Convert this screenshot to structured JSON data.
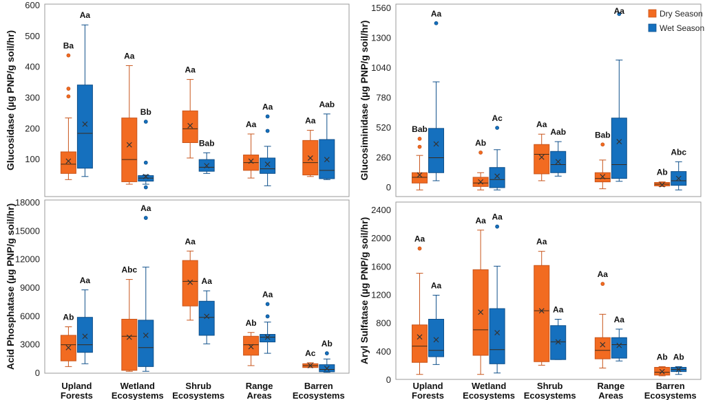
{
  "categories": [
    "Upland Forests",
    "Wetland Ecosystems",
    "Shrub Ecosystems",
    "Range Areas",
    "Barren Ecosystems"
  ],
  "category_lines": [
    [
      "Upland",
      "Forests"
    ],
    [
      "Wetland",
      "Ecosystems"
    ],
    [
      "Shrub",
      "Ecosystems"
    ],
    [
      "Range",
      "Areas"
    ],
    [
      "Barren",
      "Ecosystems"
    ]
  ],
  "colors": {
    "dry": "#F26B21",
    "wet": "#1570BE",
    "dry_edge": "#C8541A",
    "wet_edge": "#0E4F8A",
    "frame": "#9a9a9a",
    "whisker": "#777777"
  },
  "legend": [
    {
      "name": "Dry Season",
      "key": "dry"
    },
    {
      "name": "Wet Season",
      "key": "wet"
    }
  ],
  "chart_data": [
    {
      "type": "box",
      "id": "glucosidase",
      "ylabel": "Glucosidase (µg PNP/g soil/hr)",
      "ylim": [
        0,
        600
      ],
      "yticks": [
        100,
        200,
        300,
        400,
        500,
        600
      ],
      "series": [
        {
          "name": "Dry Season",
          "boxes": [
            {
              "min": 35,
              "q1": 55,
              "median": 85,
              "q3": 125,
              "max": 235,
              "mean": 95,
              "outliers": [
                305,
                330,
                438
              ],
              "label": "Ba"
            },
            {
              "min": 20,
              "q1": 28,
              "median": 100,
              "q3": 235,
              "max": 405,
              "mean": 148,
              "outliers": [],
              "label": "Aa"
            },
            {
              "min": 105,
              "q1": 155,
              "median": 200,
              "q3": 258,
              "max": 360,
              "mean": 210,
              "outliers": [],
              "label": "Aa"
            },
            {
              "min": 40,
              "q1": 65,
              "median": 90,
              "q3": 115,
              "max": 183,
              "mean": 95,
              "outliers": [],
              "label": "Aa"
            },
            {
              "min": 45,
              "q1": 50,
              "median": 90,
              "q3": 162,
              "max": 195,
              "mean": 105,
              "outliers": [],
              "label": "Aa"
            }
          ]
        },
        {
          "name": "Wet Season",
          "boxes": [
            {
              "min": 45,
              "q1": 72,
              "median": 185,
              "q3": 342,
              "max": 537,
              "mean": 215,
              "outliers": [],
              "label": "Aa"
            },
            {
              "min": 20,
              "q1": 30,
              "median": 40,
              "q3": 48,
              "max": 50,
              "mean": 45,
              "outliers": [
                10,
                90,
                223
              ],
              "label": "Bb"
            },
            {
              "min": 55,
              "q1": 62,
              "median": 75,
              "q3": 100,
              "max": 122,
              "mean": 80,
              "outliers": [],
              "label": "Bab"
            },
            {
              "min": 15,
              "q1": 55,
              "median": 70,
              "q3": 105,
              "max": 143,
              "mean": 85,
              "outliers": [
                193,
                240
              ],
              "label": "Aa"
            },
            {
              "min": 35,
              "q1": 38,
              "median": 65,
              "q3": 165,
              "max": 248,
              "mean": 100,
              "outliers": [],
              "label": "Aab"
            }
          ]
        }
      ]
    },
    {
      "type": "box",
      "id": "glucosiminidase",
      "ylabel": "Glucosiminidase (µg PNP/g soil/hr)",
      "ylim": [
        0,
        1560
      ],
      "yticks": [
        0,
        260,
        520,
        780,
        1040,
        1300,
        1560
      ],
      "legend": "top-right",
      "series": [
        {
          "name": "Dry Season",
          "boxes": [
            {
              "min": -20,
              "q1": 40,
              "median": 90,
              "q3": 130,
              "max": 280,
              "mean": 110,
              "outliers": [
                355,
                425
              ],
              "label": "Bab"
            },
            {
              "min": -20,
              "q1": 10,
              "median": 40,
              "q3": 90,
              "max": 130,
              "mean": 50,
              "outliers": [
                305
              ],
              "label": "Ab"
            },
            {
              "min": 60,
              "q1": 120,
              "median": 290,
              "q3": 375,
              "max": 465,
              "mean": 265,
              "outliers": [],
              "label": "Aa"
            },
            {
              "min": -10,
              "q1": 50,
              "median": 80,
              "q3": 130,
              "max": 240,
              "mean": 95,
              "outliers": [
                375
              ],
              "label": "Bab"
            },
            {
              "min": 10,
              "q1": 15,
              "median": 30,
              "q3": 45,
              "max": 50,
              "mean": 25,
              "outliers": [],
              "label": "Ab"
            }
          ]
        },
        {
          "name": "Wet Season",
          "boxes": [
            {
              "min": 60,
              "q1": 130,
              "median": 260,
              "q3": 515,
              "max": 920,
              "mean": 380,
              "outliers": [
                1430
              ],
              "label": "Aa"
            },
            {
              "min": -20,
              "q1": 0,
              "median": 70,
              "q3": 175,
              "max": 330,
              "mean": 100,
              "outliers": [
                520
              ],
              "label": "Ac"
            },
            {
              "min": 100,
              "q1": 130,
              "median": 200,
              "q3": 315,
              "max": 400,
              "mean": 225,
              "outliers": [],
              "label": "Aab"
            },
            {
              "min": 55,
              "q1": 80,
              "median": 200,
              "q3": 605,
              "max": 1110,
              "mean": 400,
              "outliers": [
                1510
              ],
              "label": "Aa"
            },
            {
              "min": -20,
              "q1": 20,
              "median": 60,
              "q3": 140,
              "max": 225,
              "mean": 80,
              "outliers": [],
              "label": "Abc"
            }
          ]
        }
      ]
    },
    {
      "type": "box",
      "id": "acid_phosphatase",
      "ylabel": "Acid Phosphatase (µg PNP/g soil/hr)",
      "ylim": [
        0,
        18000
      ],
      "yticks": [
        0,
        3000,
        6000,
        9000,
        12000,
        15000,
        18000
      ],
      "series": [
        {
          "name": "Dry Season",
          "boxes": [
            {
              "min": 700,
              "q1": 1300,
              "median": 3000,
              "q3": 4000,
              "max": 4900,
              "mean": 2700,
              "outliers": [],
              "label": "Ab"
            },
            {
              "min": 200,
              "q1": 300,
              "median": 3900,
              "q3": 5700,
              "max": 9900,
              "mean": 3800,
              "outliers": [],
              "label": "Abc"
            },
            {
              "min": 5600,
              "q1": 7100,
              "median": 9700,
              "q3": 11900,
              "max": 12900,
              "mean": 9600,
              "outliers": [],
              "label": "Aa"
            },
            {
              "min": 800,
              "q1": 1900,
              "median": 3000,
              "q3": 3900,
              "max": 4300,
              "mean": 2800,
              "outliers": [],
              "label": "Ab"
            },
            {
              "min": 600,
              "q1": 600,
              "median": 800,
              "q3": 1000,
              "max": 1100,
              "mean": 800,
              "outliers": [],
              "label": "Ac"
            }
          ]
        },
        {
          "name": "Wet Season",
          "boxes": [
            {
              "min": 1000,
              "q1": 2200,
              "median": 3000,
              "q3": 5900,
              "max": 8800,
              "mean": 3900,
              "outliers": [],
              "label": "Aa"
            },
            {
              "min": 200,
              "q1": 700,
              "median": 2700,
              "q3": 5600,
              "max": 11200,
              "mean": 4000,
              "outliers": [
                16400
              ],
              "label": "Aa"
            },
            {
              "min": 3100,
              "q1": 4000,
              "median": 5900,
              "q3": 7600,
              "max": 8700,
              "mean": 6000,
              "outliers": [],
              "label": "Aa"
            },
            {
              "min": 2100,
              "q1": 3300,
              "median": 3800,
              "q3": 4100,
              "max": 5400,
              "mean": 3800,
              "outliers": [
                6000,
                7300
              ],
              "label": "Aa"
            },
            {
              "min": 100,
              "q1": 150,
              "median": 400,
              "q3": 900,
              "max": 1500,
              "mean": 500,
              "outliers": [
                2100
              ],
              "label": "Ab"
            }
          ]
        }
      ]
    },
    {
      "type": "box",
      "id": "aryl_sulfatase",
      "ylabel": "Aryl Sulfatase (µg PNP/g soil/hr)",
      "ylim": [
        0,
        2400
      ],
      "yticks": [
        0,
        400,
        800,
        1200,
        1600,
        2000,
        2400
      ],
      "series": [
        {
          "name": "Dry Season",
          "boxes": [
            {
              "min": 80,
              "q1": 250,
              "median": 480,
              "q3": 780,
              "max": 1510,
              "mean": 610,
              "outliers": [
                1860
              ],
              "label": "Aa"
            },
            {
              "min": 80,
              "q1": 350,
              "median": 710,
              "q3": 1560,
              "max": 2120,
              "mean": 960,
              "outliers": [],
              "label": "Aa"
            },
            {
              "min": 210,
              "q1": 260,
              "median": 980,
              "q3": 1620,
              "max": 1820,
              "mean": 980,
              "outliers": [],
              "label": "Aa"
            },
            {
              "min": 170,
              "q1": 300,
              "median": 420,
              "q3": 600,
              "max": 930,
              "mean": 500,
              "outliers": [
                1360
              ],
              "label": "Aa"
            },
            {
              "min": 60,
              "q1": 70,
              "median": 110,
              "q3": 180,
              "max": 190,
              "mean": 120,
              "outliers": [],
              "label": "Ab"
            }
          ]
        },
        {
          "name": "Wet Season",
          "boxes": [
            {
              "min": 220,
              "q1": 330,
              "median": 420,
              "q3": 860,
              "max": 1200,
              "mean": 570,
              "outliers": [],
              "label": "Aa"
            },
            {
              "min": 100,
              "q1": 230,
              "median": 430,
              "q3": 1010,
              "max": 1610,
              "mean": 670,
              "outliers": [
                2170
              ],
              "label": "Aa"
            },
            {
              "min": 290,
              "q1": 290,
              "median": 540,
              "q3": 770,
              "max": 860,
              "mean": 540,
              "outliers": [],
              "label": "Aa"
            },
            {
              "min": 270,
              "q1": 310,
              "median": 500,
              "q3": 600,
              "max": 720,
              "mean": 490,
              "outliers": [],
              "label": "Aa"
            },
            {
              "min": 80,
              "q1": 120,
              "median": 150,
              "q3": 180,
              "max": 190,
              "mean": 150,
              "outliers": [],
              "label": "Ab"
            }
          ]
        }
      ]
    }
  ]
}
